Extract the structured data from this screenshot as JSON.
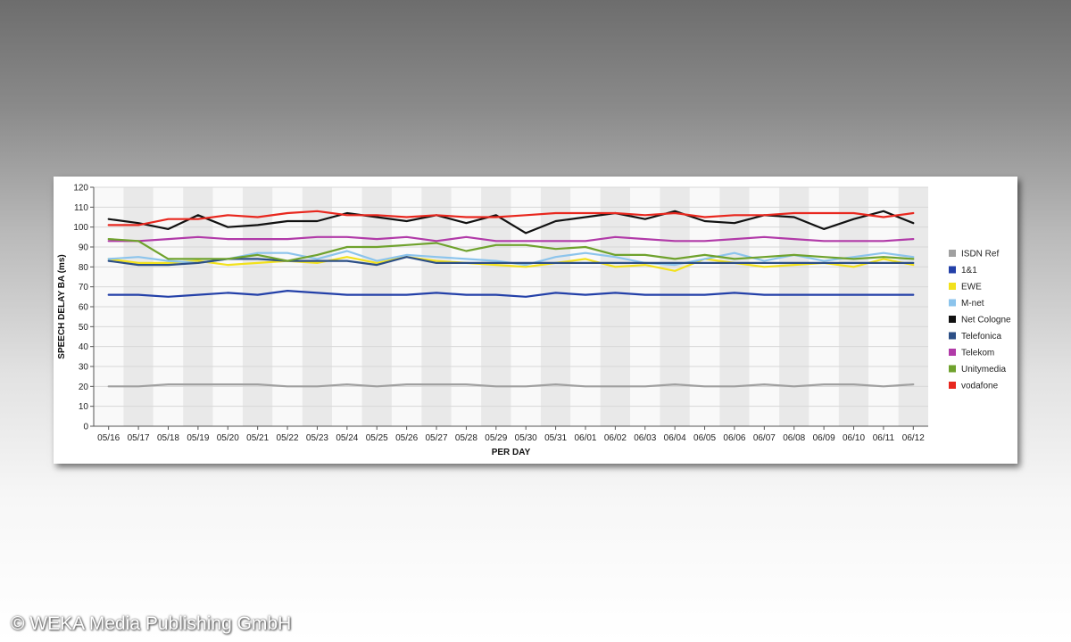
{
  "copyright": "© WEKA Media Publishing GmbH",
  "chart_data": {
    "type": "line",
    "xlabel": "PER DAY",
    "ylabel": "SPEECH DELAY BA (ms)",
    "ylim": [
      0,
      120
    ],
    "yticks": [
      0,
      10,
      20,
      30,
      40,
      50,
      60,
      70,
      80,
      90,
      100,
      110,
      120
    ],
    "grid": "alternating vertical bands",
    "legend_position": "right",
    "categories": [
      "05/16",
      "05/17",
      "05/18",
      "05/19",
      "05/20",
      "05/21",
      "05/22",
      "05/23",
      "05/24",
      "05/25",
      "05/26",
      "05/27",
      "05/28",
      "05/29",
      "05/30",
      "05/31",
      "06/01",
      "06/02",
      "06/03",
      "06/04",
      "06/05",
      "06/06",
      "06/07",
      "06/08",
      "06/09",
      "06/10",
      "06/11",
      "06/12"
    ],
    "series": [
      {
        "name": "ISDN Ref",
        "color": "#a0a0a0",
        "values": [
          20,
          20,
          21,
          21,
          21,
          21,
          20,
          20,
          21,
          20,
          21,
          21,
          21,
          20,
          20,
          21,
          20,
          20,
          20,
          21,
          20,
          20,
          21,
          20,
          21,
          21,
          20,
          21
        ]
      },
      {
        "name": "1&1",
        "color": "#2340a8",
        "values": [
          66,
          66,
          65,
          66,
          67,
          66,
          68,
          67,
          66,
          66,
          66,
          67,
          66,
          66,
          65,
          67,
          66,
          67,
          66,
          66,
          66,
          67,
          66,
          66,
          66,
          66,
          66,
          66
        ]
      },
      {
        "name": "EWE",
        "color": "#f2e11c",
        "values": [
          84,
          82,
          82,
          83,
          81,
          82,
          83,
          82,
          85,
          82,
          85,
          83,
          82,
          81,
          80,
          82,
          84,
          80,
          81,
          78,
          84,
          82,
          80,
          81,
          82,
          80,
          84,
          81
        ]
      },
      {
        "name": "M-net",
        "color": "#8cc4ec",
        "values": [
          84,
          85,
          83,
          82,
          84,
          87,
          87,
          84,
          88,
          83,
          86,
          85,
          84,
          83,
          81,
          85,
          87,
          85,
          82,
          81,
          84,
          87,
          83,
          86,
          83,
          85,
          87,
          85
        ]
      },
      {
        "name": "Net Cologne",
        "color": "#111111",
        "values": [
          104,
          102,
          99,
          106,
          100,
          101,
          103,
          103,
          107,
          105,
          103,
          106,
          102,
          106,
          97,
          103,
          105,
          107,
          104,
          108,
          103,
          102,
          106,
          105,
          99,
          104,
          108,
          102
        ]
      },
      {
        "name": "Telefonica",
        "color": "#2c4f86",
        "values": [
          83,
          81,
          81,
          82,
          84,
          84,
          83,
          83,
          83,
          81,
          85,
          82,
          82,
          82,
          82,
          82,
          82,
          82,
          82,
          82,
          82,
          82,
          82,
          82,
          82,
          82,
          82,
          82
        ]
      },
      {
        "name": "Telekom",
        "color": "#b13aa8",
        "values": [
          93,
          93,
          94,
          95,
          94,
          94,
          94,
          95,
          95,
          94,
          95,
          93,
          95,
          93,
          93,
          93,
          93,
          95,
          94,
          93,
          93,
          94,
          95,
          94,
          93,
          93,
          93,
          94
        ]
      },
      {
        "name": "Unitymedia",
        "color": "#6fa22d",
        "values": [
          94,
          93,
          84,
          84,
          84,
          86,
          83,
          86,
          90,
          90,
          91,
          92,
          88,
          91,
          91,
          89,
          90,
          86,
          86,
          84,
          86,
          84,
          85,
          86,
          85,
          84,
          85,
          84
        ]
      },
      {
        "name": "vodafone",
        "color": "#e8271e",
        "values": [
          101,
          101,
          104,
          104,
          106,
          105,
          107,
          108,
          106,
          106,
          105,
          106,
          105,
          105,
          106,
          107,
          107,
          107,
          106,
          107,
          105,
          106,
          106,
          107,
          107,
          107,
          105,
          107
        ]
      }
    ]
  }
}
